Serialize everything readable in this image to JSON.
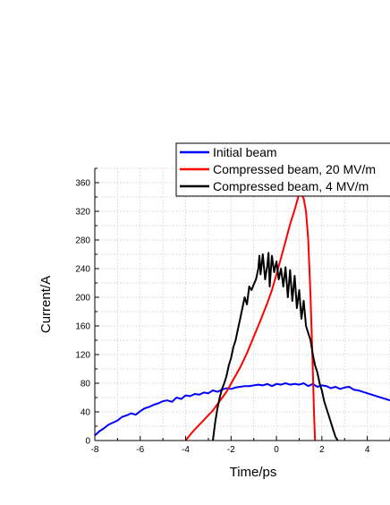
{
  "chart_data": {
    "type": "line",
    "title": "",
    "xlabel": "Time/ps",
    "ylabel": "Current/A",
    "xlim": [
      -8,
      5
    ],
    "ylim": [
      0,
      380
    ],
    "grid": true,
    "legend_position": "top",
    "x_ticks": [
      "-8",
      "-6",
      "-4",
      "-2",
      "0",
      "2",
      "4"
    ],
    "y_ticks": [
      "0",
      "40",
      "80",
      "120",
      "160",
      "200",
      "240",
      "280",
      "320",
      "360"
    ],
    "series": [
      {
        "name": "Initial beam",
        "color": "#0000ff",
        "points": [
          [
            -8,
            7
          ],
          [
            -7.8,
            13
          ],
          [
            -7.6,
            17
          ],
          [
            -7.4,
            22
          ],
          [
            -7.2,
            25
          ],
          [
            -7,
            28
          ],
          [
            -6.8,
            33
          ],
          [
            -6.6,
            35
          ],
          [
            -6.4,
            38
          ],
          [
            -6.2,
            36
          ],
          [
            -6,
            41
          ],
          [
            -5.8,
            45
          ],
          [
            -5.6,
            47
          ],
          [
            -5.4,
            50
          ],
          [
            -5.2,
            52
          ],
          [
            -5,
            55
          ],
          [
            -4.8,
            56
          ],
          [
            -4.6,
            54
          ],
          [
            -4.4,
            60
          ],
          [
            -4.2,
            58
          ],
          [
            -4,
            63
          ],
          [
            -3.8,
            62
          ],
          [
            -3.6,
            65
          ],
          [
            -3.4,
            64
          ],
          [
            -3.2,
            67
          ],
          [
            -3,
            66
          ],
          [
            -2.8,
            70
          ],
          [
            -2.6,
            68
          ],
          [
            -2.4,
            71
          ],
          [
            -2.2,
            73
          ],
          [
            -2,
            72
          ],
          [
            -1.8,
            74
          ],
          [
            -1.6,
            75
          ],
          [
            -1.4,
            76
          ],
          [
            -1.2,
            76
          ],
          [
            -1,
            77
          ],
          [
            -0.8,
            78
          ],
          [
            -0.6,
            77
          ],
          [
            -0.4,
            79
          ],
          [
            -0.2,
            76
          ],
          [
            0,
            79
          ],
          [
            0.2,
            78
          ],
          [
            0.4,
            80
          ],
          [
            0.6,
            78
          ],
          [
            0.8,
            79
          ],
          [
            1,
            78
          ],
          [
            1.2,
            80
          ],
          [
            1.4,
            76
          ],
          [
            1.6,
            79
          ],
          [
            1.8,
            75
          ],
          [
            2,
            77
          ],
          [
            2.2,
            76
          ],
          [
            2.4,
            73
          ],
          [
            2.6,
            75
          ],
          [
            2.8,
            72
          ],
          [
            3,
            74
          ],
          [
            3.2,
            75
          ],
          [
            3.4,
            71
          ],
          [
            3.6,
            70
          ],
          [
            3.8,
            68
          ],
          [
            4,
            66
          ],
          [
            4.2,
            64
          ],
          [
            4.4,
            62
          ],
          [
            4.6,
            60
          ],
          [
            4.8,
            58
          ],
          [
            5,
            56
          ]
        ]
      },
      {
        "name": "Compressed beam, 20 MV/m",
        "color": "#ff0000",
        "points": [
          [
            -4,
            0
          ],
          [
            -3.7,
            12
          ],
          [
            -3.4,
            22
          ],
          [
            -3.1,
            32
          ],
          [
            -2.8,
            42
          ],
          [
            -2.5,
            55
          ],
          [
            -2.2,
            68
          ],
          [
            -1.9,
            85
          ],
          [
            -1.6,
            102
          ],
          [
            -1.3,
            122
          ],
          [
            -1,
            145
          ],
          [
            -0.7,
            168
          ],
          [
            -0.4,
            192
          ],
          [
            -0.2,
            210
          ],
          [
            0,
            232
          ],
          [
            0.2,
            255
          ],
          [
            0.4,
            278
          ],
          [
            0.6,
            302
          ],
          [
            0.8,
            322
          ],
          [
            1,
            345
          ],
          [
            1.1,
            343
          ],
          [
            1.2,
            338
          ],
          [
            1.3,
            320
          ],
          [
            1.4,
            280
          ],
          [
            1.5,
            200
          ],
          [
            1.6,
            100
          ],
          [
            1.65,
            40
          ],
          [
            1.7,
            0
          ]
        ]
      },
      {
        "name": "Compressed beam, 4 MV/m",
        "color": "#000000",
        "points": [
          [
            -2.8,
            0
          ],
          [
            -2.7,
            25
          ],
          [
            -2.6,
            45
          ],
          [
            -2.5,
            60
          ],
          [
            -2.4,
            72
          ],
          [
            -2.3,
            80
          ],
          [
            -2.2,
            90
          ],
          [
            -2.1,
            105
          ],
          [
            -2,
            115
          ],
          [
            -1.9,
            130
          ],
          [
            -1.8,
            140
          ],
          [
            -1.7,
            155
          ],
          [
            -1.6,
            170
          ],
          [
            -1.5,
            185
          ],
          [
            -1.4,
            200
          ],
          [
            -1.3,
            190
          ],
          [
            -1.2,
            215
          ],
          [
            -1.1,
            210
          ],
          [
            -1,
            218
          ],
          [
            -0.9,
            225
          ],
          [
            -0.8,
            240
          ],
          [
            -0.75,
            258
          ],
          [
            -0.7,
            232
          ],
          [
            -0.6,
            260
          ],
          [
            -0.5,
            225
          ],
          [
            -0.4,
            245
          ],
          [
            -0.35,
            262
          ],
          [
            -0.3,
            215
          ],
          [
            -0.2,
            258
          ],
          [
            -0.1,
            235
          ],
          [
            0,
            250
          ],
          [
            0.1,
            225
          ],
          [
            0.2,
            240
          ],
          [
            0.3,
            215
          ],
          [
            0.4,
            242
          ],
          [
            0.5,
            200
          ],
          [
            0.6,
            238
          ],
          [
            0.7,
            195
          ],
          [
            0.8,
            230
          ],
          [
            0.9,
            185
          ],
          [
            1,
            210
          ],
          [
            1.1,
            170
          ],
          [
            1.2,
            195
          ],
          [
            1.3,
            160
          ],
          [
            1.4,
            150
          ],
          [
            1.5,
            140
          ],
          [
            1.6,
            120
          ],
          [
            1.7,
            105
          ],
          [
            1.8,
            95
          ],
          [
            1.9,
            80
          ],
          [
            2,
            70
          ],
          [
            2.1,
            55
          ],
          [
            2.2,
            45
          ],
          [
            2.3,
            35
          ],
          [
            2.4,
            25
          ],
          [
            2.5,
            15
          ],
          [
            2.6,
            5
          ],
          [
            2.7,
            0
          ]
        ]
      }
    ]
  }
}
